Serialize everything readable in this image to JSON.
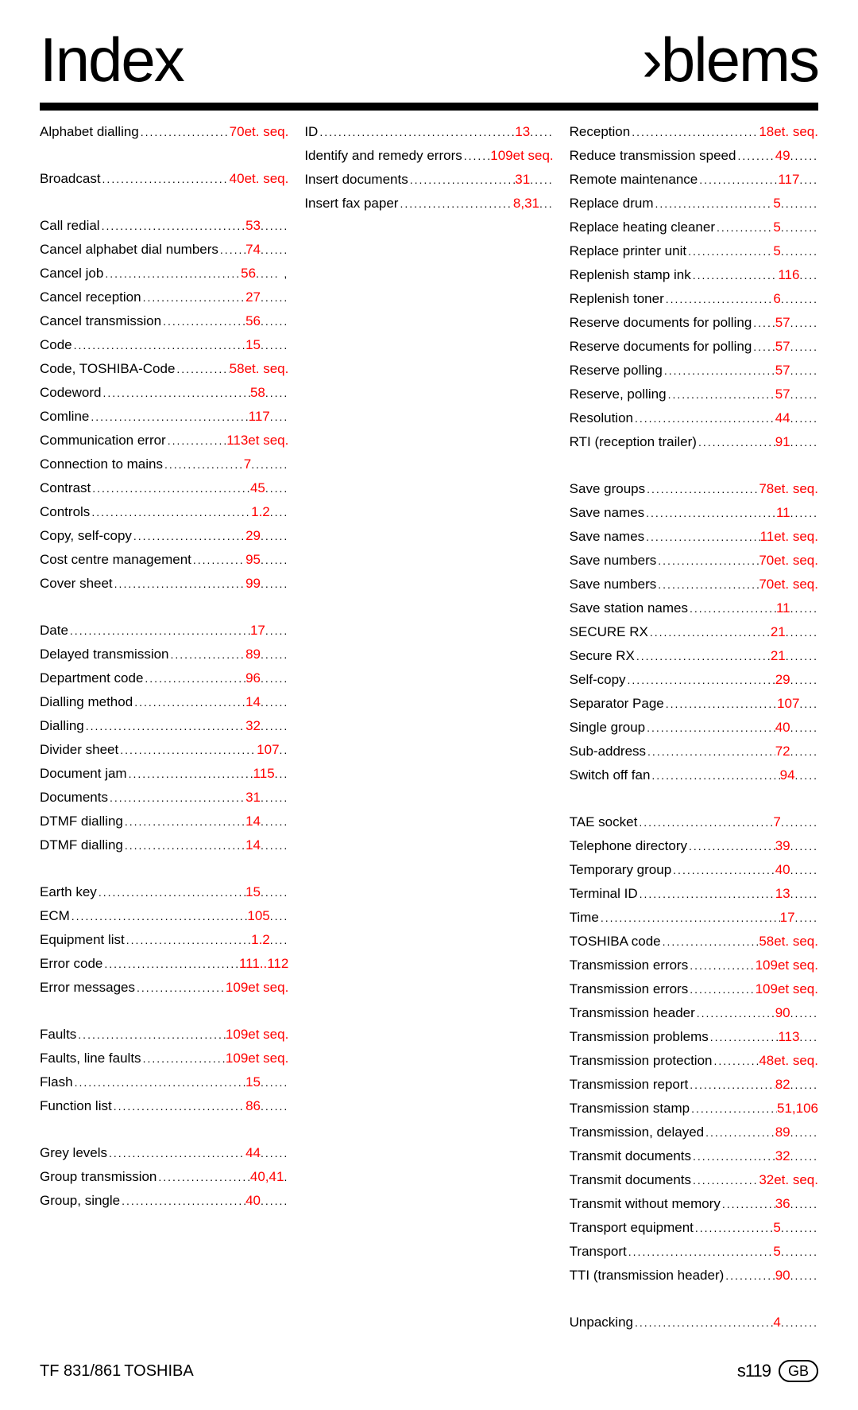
{
  "heading_left": "Index",
  "heading_right": "›blems",
  "footer": {
    "model": "TF 831/861",
    "brand": "TOSHIBA",
    "page_prefix": "s",
    "page_num": "119",
    "badge": "GB"
  },
  "columns": [
    [
      {
        "t": "entry",
        "label": "Alphabet dialling",
        "page": "70et. seq.",
        "trail": ""
      },
      {
        "t": "spacer"
      },
      {
        "t": "entry",
        "label": "Broadcast",
        "page": "40et. seq.",
        "trail": ""
      },
      {
        "t": "spacer"
      },
      {
        "t": "entry",
        "label": "Call redial",
        "page": "53",
        "trail": "......"
      },
      {
        "t": "entry",
        "label": "Cancel alphabet dial numbers",
        "page": "74",
        "trail": "......"
      },
      {
        "t": "entry",
        "label": "Cancel job",
        "page": "56",
        "trail": "..... ,"
      },
      {
        "t": "entry",
        "label": "Cancel reception",
        "page": "27",
        "trail": "......"
      },
      {
        "t": "entry",
        "label": "Cancel transmission",
        "page": "56",
        "trail": "......"
      },
      {
        "t": "entry",
        "label": "Code",
        "page": "15",
        "trail": "......"
      },
      {
        "t": "entry",
        "label": "Code, TOSHIBA-Code",
        "page": "58et. seq.",
        "trail": ""
      },
      {
        "t": "entry",
        "label": "Codeword",
        "page": "58",
        "trail": "....."
      },
      {
        "t": "entry",
        "label": "Comline",
        "page": "117",
        "trail": "...."
      },
      {
        "t": "entry",
        "label": "Communication error",
        "page": "113et seq.",
        "trail": ""
      },
      {
        "t": "entry",
        "label": "Connection to mains",
        "page": "7",
        "trail": "........"
      },
      {
        "t": "entry",
        "label": "Contrast",
        "page": "45",
        "trail": "....."
      },
      {
        "t": "entry",
        "label": "Controls",
        "page": "1.2",
        "trail": "...."
      },
      {
        "t": "entry",
        "label": "Copy, self-copy",
        "page": "29",
        "trail": "......"
      },
      {
        "t": "entry",
        "label": "Cost centre management",
        "page": "95",
        "trail": "......"
      },
      {
        "t": "entry",
        "label": "Cover sheet",
        "page": "99",
        "trail": "......"
      },
      {
        "t": "spacer"
      },
      {
        "t": "entry",
        "label": "Date",
        "page": "17",
        "trail": "....."
      },
      {
        "t": "entry",
        "label": "Delayed transmission",
        "page": "89",
        "trail": "......"
      },
      {
        "t": "entry",
        "label": "Department code",
        "page": "96",
        "trail": "......"
      },
      {
        "t": "entry",
        "label": "Dialling method",
        "page": "14",
        "trail": "......"
      },
      {
        "t": "entry",
        "label": "Dialling",
        "page": "32",
        "trail": "......"
      },
      {
        "t": "entry",
        "label": "Divider sheet",
        "page": "107",
        "trail": ".."
      },
      {
        "t": "entry",
        "label": "Document jam",
        "page": "115",
        "trail": "..."
      },
      {
        "t": "entry",
        "label": "Documents",
        "page": "31",
        "trail": "......"
      },
      {
        "t": "entry",
        "label": "DTMF dialling",
        "page": "14",
        "trail": "......"
      },
      {
        "t": "entry",
        "label": "DTMF dialling",
        "page": "14",
        "trail": "......"
      },
      {
        "t": "spacer"
      },
      {
        "t": "entry",
        "label": "Earth key",
        "page": "15",
        "trail": "......"
      },
      {
        "t": "entry",
        "label": "ECM",
        "page": "105",
        "trail": "...."
      },
      {
        "t": "entry",
        "label": "Equipment list",
        "page": "1.2",
        "trail": "...."
      },
      {
        "t": "entry",
        "label": "Error code",
        "page": "111..112",
        "trail": ""
      },
      {
        "t": "entry",
        "label": "Error messages",
        "page": "109et seq.",
        "trail": ""
      },
      {
        "t": "spacer"
      },
      {
        "t": "entry",
        "label": "Faults",
        "page": "109et seq.",
        "trail": ""
      },
      {
        "t": "entry",
        "label": "Faults, line faults",
        "page": "109et seq.",
        "trail": ""
      },
      {
        "t": "entry",
        "label": "Flash",
        "page": "15",
        "trail": "......"
      },
      {
        "t": "entry",
        "label": "Function list",
        "page": "86",
        "trail": "......"
      },
      {
        "t": "spacer"
      },
      {
        "t": "entry",
        "label": "Grey levels",
        "page": "44",
        "trail": "......"
      },
      {
        "t": "entry",
        "label": "Group transmission",
        "page": "40,41",
        "trail": "."
      },
      {
        "t": "entry",
        "label": "Group, single",
        "page": "40",
        "trail": "......"
      }
    ],
    [
      {
        "t": "entry",
        "label": "ID",
        "page": "13",
        "trail": "....."
      },
      {
        "t": "entry",
        "label": "Identify and remedy errors",
        "page": "109et seq.",
        "trail": ""
      },
      {
        "t": "entry",
        "label": "Insert documents",
        "page": "31",
        "trail": "....."
      },
      {
        "t": "entry",
        "label": "Insert fax paper",
        "page": "8,31",
        "trail": "..."
      }
    ],
    [
      {
        "t": "entry",
        "label": "Reception",
        "page": "18et. seq.",
        "trail": ""
      },
      {
        "t": "entry",
        "label": "Reduce transmission speed",
        "page": "49",
        "trail": "......"
      },
      {
        "t": "entry",
        "label": "Remote maintenance",
        "page": "117",
        "trail": "...."
      },
      {
        "t": "entry",
        "label": "Replace drum",
        "page": "5",
        "trail": "........"
      },
      {
        "t": "entry",
        "label": "Replace heating cleaner",
        "page": "5",
        "trail": "........"
      },
      {
        "t": "entry",
        "label": "Replace printer unit",
        "page": "5",
        "trail": "........"
      },
      {
        "t": "entry",
        "label": "Replenish stamp ink",
        "page": "116",
        "trail": "...."
      },
      {
        "t": "entry",
        "label": "Replenish toner",
        "page": "6",
        "trail": "........"
      },
      {
        "t": "entry",
        "label": "Reserve documents for polling",
        "page": "57",
        "trail": "......"
      },
      {
        "t": "entry",
        "label": "Reserve documents for polling",
        "page": "57",
        "trail": "......"
      },
      {
        "t": "entry",
        "label": "Reserve polling",
        "page": "57",
        "trail": "......"
      },
      {
        "t": "entry",
        "label": "Reserve, polling",
        "page": "57",
        "trail": "......"
      },
      {
        "t": "entry",
        "label": "Resolution",
        "page": "44",
        "trail": "......"
      },
      {
        "t": "entry",
        "label": "RTI (reception trailer)",
        "page": "91",
        "trail": "......"
      },
      {
        "t": "spacer"
      },
      {
        "t": "entry",
        "label": "Save groups",
        "page": "78et. seq.",
        "trail": ""
      },
      {
        "t": "entry",
        "label": "Save names",
        "page": "11",
        "trail": "......"
      },
      {
        "t": "entry",
        "label": "Save names",
        "page": "11et. seq.",
        "trail": ""
      },
      {
        "t": "entry",
        "label": "Save numbers",
        "page": "70et. seq.",
        "trail": ""
      },
      {
        "t": "entry",
        "label": "Save numbers",
        "page": "70et. seq.",
        "trail": ""
      },
      {
        "t": "entry",
        "label": "Save station names",
        "page": "11",
        "trail": "......"
      },
      {
        "t": "entry",
        "label": "SECURE RX",
        "page": "21",
        "trail": "......."
      },
      {
        "t": "entry",
        "label": "Secure RX",
        "page": "21",
        "trail": "......."
      },
      {
        "t": "entry",
        "label": "Self-copy",
        "page": "29",
        "trail": "......"
      },
      {
        "t": "entry",
        "label": "Separator Page",
        "page": "107",
        "trail": "...."
      },
      {
        "t": "entry",
        "label": "Single group",
        "page": "40",
        "trail": "......"
      },
      {
        "t": "entry",
        "label": "Sub-address",
        "page": "72",
        "trail": "......"
      },
      {
        "t": "entry",
        "label": "Switch off fan",
        "page": "94",
        "trail": "....."
      },
      {
        "t": "spacer"
      },
      {
        "t": "entry",
        "label": "TAE socket",
        "page": "7",
        "trail": "........"
      },
      {
        "t": "entry",
        "label": "Telephone directory",
        "page": "39",
        "trail": "......"
      },
      {
        "t": "entry",
        "label": "Temporary group",
        "page": "40",
        "trail": "......"
      },
      {
        "t": "entry",
        "label": "Terminal ID",
        "page": "13",
        "trail": "......"
      },
      {
        "t": "entry",
        "label": "Time",
        "page": "17",
        "trail": "....."
      },
      {
        "t": "entry",
        "label": "TOSHIBA code",
        "page": "58et. seq.",
        "trail": ""
      },
      {
        "t": "entry",
        "label": "Transmission errors",
        "page": "109et seq.",
        "trail": ""
      },
      {
        "t": "entry",
        "label": "Transmission errors",
        "page": "109et seq.",
        "trail": ""
      },
      {
        "t": "entry",
        "label": "Transmission header",
        "page": "90",
        "trail": "......"
      },
      {
        "t": "entry",
        "label": "Transmission problems",
        "page": "113",
        "trail": "...."
      },
      {
        "t": "entry",
        "label": "Transmission protection",
        "page": "48et. seq.",
        "trail": ""
      },
      {
        "t": "entry",
        "label": "Transmission report",
        "page": "82",
        "trail": "......"
      },
      {
        "t": "entry",
        "label": "Transmission stamp",
        "page": "51,106",
        "trail": ""
      },
      {
        "t": "entry",
        "label": "Transmission, delayed",
        "page": "89",
        "trail": "......"
      },
      {
        "t": "entry",
        "label": "Transmit documents",
        "page": "32",
        "trail": "......"
      },
      {
        "t": "entry",
        "label": "Transmit documents",
        "page": "32et. seq.",
        "trail": ""
      },
      {
        "t": "entry",
        "label": "Transmit without memory",
        "page": "36",
        "trail": "......"
      },
      {
        "t": "entry",
        "label": "Transport equipment",
        "page": "5",
        "trail": "........"
      },
      {
        "t": "entry",
        "label": "Transport",
        "page": "5",
        "trail": "........"
      },
      {
        "t": "entry",
        "label": "TTI (transmission header)",
        "page": "90",
        "trail": "......"
      },
      {
        "t": "spacer"
      },
      {
        "t": "entry",
        "label": "Unpacking",
        "page": "4",
        "trail": "........"
      }
    ]
  ]
}
